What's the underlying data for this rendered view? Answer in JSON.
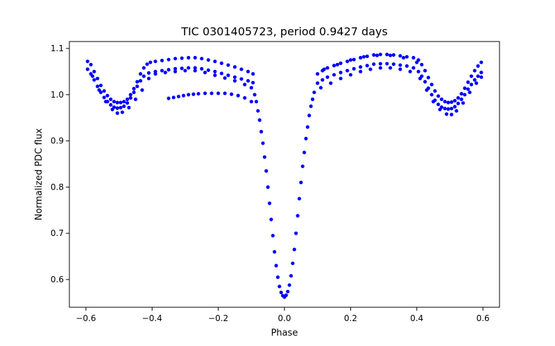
{
  "chart_data": {
    "type": "scatter",
    "title": "TIC 0301405723, period 0.9427 days",
    "xlabel": "Phase",
    "ylabel": "Normalized PDC flux",
    "xlim": [
      -0.65,
      0.65
    ],
    "ylim": [
      0.54,
      1.115
    ],
    "xticks": [
      -0.6,
      -0.4,
      -0.2,
      0.0,
      0.2,
      0.4,
      0.6
    ],
    "xtick_labels": [
      "−0.6",
      "−0.4",
      "−0.2",
      "0.0",
      "0.2",
      "0.4",
      "0.6"
    ],
    "yticks": [
      0.6,
      0.7,
      0.8,
      0.9,
      1.0,
      1.1
    ],
    "ytick_labels": [
      "0.6",
      "0.7",
      "0.8",
      "0.9",
      "1.0",
      "1.1"
    ],
    "grid": false,
    "marker_color": "#0000ff",
    "series": [
      {
        "points": [
          [
            -0.595,
            1.072
          ],
          [
            -0.585,
            1.065
          ],
          [
            -0.575,
            1.05
          ],
          [
            -0.565,
            1.035
          ],
          [
            -0.555,
            1.02
          ],
          [
            -0.545,
            1.008
          ],
          [
            -0.535,
            0.998
          ],
          [
            -0.525,
            0.99
          ],
          [
            -0.515,
            0.985
          ],
          [
            -0.505,
            0.983
          ],
          [
            -0.495,
            0.983
          ],
          [
            -0.485,
            0.985
          ],
          [
            -0.475,
            0.99
          ],
          [
            -0.465,
            1.0
          ],
          [
            -0.455,
            1.013
          ],
          [
            -0.445,
            1.028
          ],
          [
            -0.435,
            1.045
          ],
          [
            -0.425,
            1.058
          ],
          [
            -0.415,
            1.066
          ],
          [
            -0.405,
            1.07
          ],
          [
            -0.39,
            1.072
          ],
          [
            -0.37,
            1.074
          ],
          [
            -0.35,
            1.076
          ],
          [
            -0.33,
            1.078
          ],
          [
            -0.31,
            1.079
          ],
          [
            -0.29,
            1.08
          ],
          [
            -0.27,
            1.08
          ],
          [
            -0.25,
            1.078
          ],
          [
            -0.23,
            1.075
          ],
          [
            -0.21,
            1.072
          ],
          [
            -0.19,
            1.068
          ],
          [
            -0.17,
            1.064
          ],
          [
            -0.15,
            1.06
          ],
          [
            -0.13,
            1.055
          ],
          [
            -0.11,
            1.05
          ],
          [
            -0.095,
            1.045
          ],
          [
            -0.595,
            1.055
          ],
          [
            -0.585,
            1.045
          ],
          [
            -0.575,
            1.032
          ],
          [
            -0.565,
            1.018
          ],
          [
            -0.555,
            1.005
          ],
          [
            -0.545,
            0.994
          ],
          [
            -0.535,
            0.985
          ],
          [
            -0.525,
            0.978
          ],
          [
            -0.515,
            0.973
          ],
          [
            -0.505,
            0.971
          ],
          [
            -0.495,
            0.972
          ],
          [
            -0.485,
            0.975
          ],
          [
            -0.475,
            0.982
          ],
          [
            -0.465,
            0.993
          ],
          [
            -0.455,
            1.005
          ],
          [
            -0.445,
            1.018
          ],
          [
            -0.435,
            1.03
          ],
          [
            -0.425,
            1.04
          ],
          [
            -0.41,
            1.047
          ],
          [
            -0.39,
            1.05
          ],
          [
            -0.37,
            1.052
          ],
          [
            -0.35,
            1.054
          ],
          [
            -0.33,
            1.056
          ],
          [
            -0.31,
            1.057
          ],
          [
            -0.29,
            1.058
          ],
          [
            -0.27,
            1.058
          ],
          [
            -0.25,
            1.056
          ],
          [
            -0.23,
            1.053
          ],
          [
            -0.21,
            1.05
          ],
          [
            -0.19,
            1.046
          ],
          [
            -0.17,
            1.042
          ],
          [
            -0.15,
            1.038
          ],
          [
            -0.13,
            1.034
          ],
          [
            -0.11,
            1.03
          ],
          [
            -0.095,
            1.026
          ],
          [
            -0.58,
            1.04
          ],
          [
            -0.56,
            1.01
          ],
          [
            -0.54,
            0.985
          ],
          [
            -0.52,
            0.968
          ],
          [
            -0.505,
            0.96
          ],
          [
            -0.49,
            0.962
          ],
          [
            -0.47,
            0.972
          ],
          [
            -0.45,
            0.99
          ],
          [
            -0.43,
            1.01
          ],
          [
            -0.41,
            1.035
          ],
          [
            -0.39,
            1.045
          ],
          [
            -0.36,
            1.048
          ],
          [
            -0.33,
            1.05
          ],
          [
            -0.3,
            1.052
          ],
          [
            -0.27,
            1.052
          ],
          [
            -0.24,
            1.048
          ],
          [
            -0.21,
            1.042
          ],
          [
            -0.18,
            1.036
          ],
          [
            -0.15,
            1.03
          ],
          [
            -0.12,
            1.022
          ],
          [
            -0.1,
            1.015
          ],
          [
            -0.35,
            0.992
          ],
          [
            -0.335,
            0.994
          ],
          [
            -0.32,
            0.996
          ],
          [
            -0.305,
            0.998
          ],
          [
            -0.29,
            1.0
          ],
          [
            -0.275,
            1.001
          ],
          [
            -0.26,
            1.002
          ],
          [
            -0.24,
            1.003
          ],
          [
            -0.22,
            1.003
          ],
          [
            -0.2,
            1.003
          ],
          [
            -0.18,
            1.003
          ],
          [
            -0.16,
            1.001
          ],
          [
            -0.14,
            0.998
          ],
          [
            -0.12,
            0.993
          ],
          [
            -0.1,
            0.985
          ],
          [
            -0.09,
            1.0
          ],
          [
            -0.085,
            0.985
          ],
          [
            -0.08,
            0.965
          ],
          [
            -0.075,
            0.945
          ],
          [
            -0.07,
            0.92
          ],
          [
            -0.065,
            0.895
          ],
          [
            -0.06,
            0.865
          ],
          [
            -0.055,
            0.835
          ],
          [
            -0.05,
            0.8
          ],
          [
            -0.045,
            0.765
          ],
          [
            -0.04,
            0.73
          ],
          [
            -0.035,
            0.695
          ],
          [
            -0.03,
            0.66
          ],
          [
            -0.025,
            0.63
          ],
          [
            -0.02,
            0.605
          ],
          [
            -0.015,
            0.585
          ],
          [
            -0.01,
            0.572
          ],
          [
            -0.005,
            0.565
          ],
          [
            0.0,
            0.562
          ],
          [
            0.005,
            0.566
          ],
          [
            0.01,
            0.574
          ],
          [
            0.015,
            0.588
          ],
          [
            0.02,
            0.608
          ],
          [
            0.025,
            0.635
          ],
          [
            0.03,
            0.665
          ],
          [
            0.035,
            0.7
          ],
          [
            0.04,
            0.738
          ],
          [
            0.045,
            0.775
          ],
          [
            0.05,
            0.81
          ],
          [
            0.055,
            0.845
          ],
          [
            0.06,
            0.875
          ],
          [
            0.065,
            0.905
          ],
          [
            0.07,
            0.93
          ],
          [
            0.075,
            0.955
          ],
          [
            0.08,
            0.975
          ],
          [
            0.085,
            0.99
          ],
          [
            0.09,
            1.005
          ],
          [
            0.1,
            1.045
          ],
          [
            0.115,
            1.052
          ],
          [
            0.13,
            1.058
          ],
          [
            0.15,
            1.063
          ],
          [
            0.17,
            1.068
          ],
          [
            0.19,
            1.072
          ],
          [
            0.21,
            1.076
          ],
          [
            0.23,
            1.08
          ],
          [
            0.25,
            1.083
          ],
          [
            0.27,
            1.086
          ],
          [
            0.29,
            1.087
          ],
          [
            0.31,
            1.087
          ],
          [
            0.33,
            1.086
          ],
          [
            0.35,
            1.084
          ],
          [
            0.37,
            1.082
          ],
          [
            0.39,
            1.08
          ],
          [
            0.405,
            1.075
          ],
          [
            0.415,
            1.065
          ],
          [
            0.425,
            1.052
          ],
          [
            0.435,
            1.037
          ],
          [
            0.445,
            1.022
          ],
          [
            0.455,
            1.008
          ],
          [
            0.465,
            0.997
          ],
          [
            0.475,
            0.99
          ],
          [
            0.485,
            0.985
          ],
          [
            0.495,
            0.983
          ],
          [
            0.505,
            0.984
          ],
          [
            0.515,
            0.987
          ],
          [
            0.525,
            0.993
          ],
          [
            0.535,
            1.002
          ],
          [
            0.545,
            1.014
          ],
          [
            0.555,
            1.027
          ],
          [
            0.565,
            1.04
          ],
          [
            0.575,
            1.052
          ],
          [
            0.585,
            1.062
          ],
          [
            0.595,
            1.07
          ],
          [
            0.1,
            1.025
          ],
          [
            0.115,
            1.032
          ],
          [
            0.13,
            1.038
          ],
          [
            0.15,
            1.043
          ],
          [
            0.17,
            1.048
          ],
          [
            0.19,
            1.052
          ],
          [
            0.21,
            1.056
          ],
          [
            0.23,
            1.06
          ],
          [
            0.25,
            1.063
          ],
          [
            0.27,
            1.066
          ],
          [
            0.29,
            1.067
          ],
          [
            0.31,
            1.067
          ],
          [
            0.33,
            1.066
          ],
          [
            0.35,
            1.064
          ],
          [
            0.37,
            1.062
          ],
          [
            0.39,
            1.058
          ],
          [
            0.405,
            1.05
          ],
          [
            0.415,
            1.04
          ],
          [
            0.425,
            1.028
          ],
          [
            0.435,
            1.014
          ],
          [
            0.445,
            1.0
          ],
          [
            0.455,
            0.988
          ],
          [
            0.465,
            0.979
          ],
          [
            0.475,
            0.973
          ],
          [
            0.485,
            0.97
          ],
          [
            0.495,
            0.969
          ],
          [
            0.505,
            0.97
          ],
          [
            0.515,
            0.974
          ],
          [
            0.525,
            0.981
          ],
          [
            0.535,
            0.99
          ],
          [
            0.545,
            1.0
          ],
          [
            0.555,
            1.012
          ],
          [
            0.565,
            1.022
          ],
          [
            0.575,
            1.032
          ],
          [
            0.585,
            1.04
          ],
          [
            0.595,
            1.048
          ],
          [
            0.11,
            1.015
          ],
          [
            0.14,
            1.025
          ],
          [
            0.17,
            1.035
          ],
          [
            0.2,
            1.043
          ],
          [
            0.23,
            1.05
          ],
          [
            0.26,
            1.055
          ],
          [
            0.29,
            1.058
          ],
          [
            0.32,
            1.058
          ],
          [
            0.35,
            1.055
          ],
          [
            0.38,
            1.05
          ],
          [
            0.41,
            1.035
          ],
          [
            0.43,
            1.01
          ],
          [
            0.45,
            0.985
          ],
          [
            0.47,
            0.968
          ],
          [
            0.49,
            0.958
          ],
          [
            0.505,
            0.957
          ],
          [
            0.52,
            0.965
          ],
          [
            0.54,
            0.982
          ],
          [
            0.56,
            1.005
          ],
          [
            0.58,
            1.025
          ],
          [
            0.595,
            1.038
          ],
          [
            0.12,
            1.055
          ],
          [
            0.16,
            1.065
          ],
          [
            0.2,
            1.075
          ],
          [
            0.24,
            1.082
          ],
          [
            0.28,
            1.085
          ],
          [
            0.32,
            1.085
          ],
          [
            0.36,
            1.08
          ],
          [
            0.4,
            1.07
          ]
        ]
      }
    ]
  }
}
